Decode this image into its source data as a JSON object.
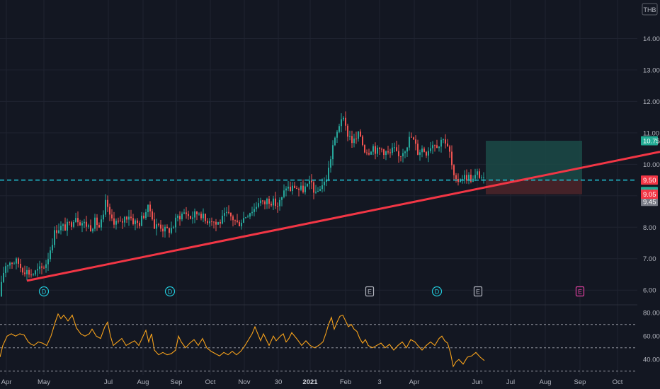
{
  "chart_data": [
    {
      "type": "candlestick",
      "currency": "THB",
      "ylim": [
        5.6,
        15.0
      ],
      "y_ticks": [
        "14.00",
        "13.00",
        "12.00",
        "11.00",
        "10.00",
        "9.00",
        "8.00",
        "7.00",
        "6.00"
      ],
      "x_tick_labels": [
        "Apr",
        "May",
        "Jul",
        "Aug",
        "Sep",
        "Oct",
        "Nov",
        "30",
        "2021",
        "Feb",
        "3",
        "Apr",
        "Jun",
        "Jul",
        "Aug",
        "Sep",
        "Oct"
      ],
      "price_path": [
        [
          0,
          5.8
        ],
        [
          4,
          6.5
        ],
        [
          8,
          6.8
        ],
        [
          13,
          6.9
        ],
        [
          18,
          6.9
        ],
        [
          25,
          6.9
        ],
        [
          30,
          6.7
        ],
        [
          38,
          6.6
        ],
        [
          45,
          6.5
        ],
        [
          52,
          6.6
        ],
        [
          60,
          6.7
        ],
        [
          66,
          6.9
        ],
        [
          72,
          7.4
        ],
        [
          78,
          7.9
        ],
        [
          84,
          8.0
        ],
        [
          92,
          8.0
        ],
        [
          100,
          8.1
        ],
        [
          106,
          8.4
        ],
        [
          112,
          8.2
        ],
        [
          120,
          8.1
        ],
        [
          128,
          8.0
        ],
        [
          135,
          8.2
        ],
        [
          140,
          8.0
        ],
        [
          146,
          8.3
        ],
        [
          150,
          8.9
        ],
        [
          155,
          8.3
        ],
        [
          162,
          8.2
        ],
        [
          170,
          8.1
        ],
        [
          176,
          8.3
        ],
        [
          182,
          8.4
        ],
        [
          188,
          8.2
        ],
        [
          196,
          8.1
        ],
        [
          203,
          8.4
        ],
        [
          208,
          8.6
        ],
        [
          214,
          8.5
        ],
        [
          218,
          8.0
        ],
        [
          225,
          8.1
        ],
        [
          232,
          7.9
        ],
        [
          238,
          7.9
        ],
        [
          244,
          8.0
        ],
        [
          250,
          8.3
        ],
        [
          256,
          8.4
        ],
        [
          262,
          8.5
        ],
        [
          268,
          8.3
        ],
        [
          275,
          8.4
        ],
        [
          282,
          8.5
        ],
        [
          290,
          8.2
        ],
        [
          298,
          8.3
        ],
        [
          305,
          8.1
        ],
        [
          312,
          8.2
        ],
        [
          320,
          8.4
        ],
        [
          328,
          8.3
        ],
        [
          336,
          8.1
        ],
        [
          344,
          8.3
        ],
        [
          352,
          8.5
        ],
        [
          360,
          8.6
        ],
        [
          366,
          8.9
        ],
        [
          372,
          8.7
        ],
        [
          378,
          8.9
        ],
        [
          385,
          8.8
        ],
        [
          392,
          8.7
        ],
        [
          398,
          8.9
        ],
        [
          404,
          9.3
        ],
        [
          410,
          9.2
        ],
        [
          416,
          9.3
        ],
        [
          422,
          9.2
        ],
        [
          428,
          9.2
        ],
        [
          434,
          9.3
        ],
        [
          440,
          9.4
        ],
        [
          446,
          9.0
        ],
        [
          452,
          9.3
        ],
        [
          458,
          9.4
        ],
        [
          462,
          9.6
        ],
        [
          466,
          10.1
        ],
        [
          470,
          10.6
        ],
        [
          474,
          10.8
        ],
        [
          478,
          11.2
        ],
        [
          482,
          11.5
        ],
        [
          486,
          11.3
        ],
        [
          490,
          11.0
        ],
        [
          494,
          10.9
        ],
        [
          498,
          10.7
        ],
        [
          503,
          10.8
        ],
        [
          508,
          11.0
        ],
        [
          514,
          10.5
        ],
        [
          520,
          10.4
        ],
        [
          526,
          10.6
        ],
        [
          532,
          10.4
        ],
        [
          538,
          10.5
        ],
        [
          544,
          10.4
        ],
        [
          550,
          10.3
        ],
        [
          556,
          10.5
        ],
        [
          562,
          10.2
        ],
        [
          568,
          10.4
        ],
        [
          574,
          10.6
        ],
        [
          580,
          10.9
        ],
        [
          585,
          10.7
        ],
        [
          590,
          10.4
        ],
        [
          596,
          10.5
        ],
        [
          602,
          10.4
        ],
        [
          608,
          10.6
        ],
        [
          614,
          10.7
        ],
        [
          620,
          10.6
        ],
        [
          626,
          10.9
        ],
        [
          632,
          10.5
        ],
        [
          636,
          10.3
        ],
        [
          640,
          9.6
        ],
        [
          644,
          9.4
        ],
        [
          650,
          9.6
        ],
        [
          656,
          9.6
        ],
        [
          662,
          9.6
        ],
        [
          668,
          9.5
        ],
        [
          674,
          9.7
        ],
        [
          680,
          9.6
        ],
        [
          684,
          9.45
        ]
      ],
      "horizontal_line": {
        "value": 9.5,
        "label": "9.50"
      },
      "trendline": {
        "points": [
          [
            38,
            6.3
          ],
          [
            932,
            10.4
          ]
        ]
      },
      "long_position": {
        "entry": 9.5,
        "target": 10.75,
        "stop": 9.05,
        "x_range": [
          686,
          822
        ],
        "labels": {
          "target": "10.75",
          "stop": "9.05"
        }
      },
      "price_labels": [
        {
          "text": "10.75",
          "value": 10.75,
          "color": "#22ab94"
        },
        {
          "text": "9.50",
          "value": 9.5,
          "color": "#f23645"
        },
        {
          "text": "9.45",
          "value": 9.45,
          "color": "#22ab94",
          "offset": 1
        },
        {
          "text": "9.45",
          "value": 9.45,
          "color": "#787b86",
          "offset": 2
        },
        {
          "text": "9.05",
          "value": 9.05,
          "color": "#f23645"
        }
      ],
      "event_markers": [
        {
          "type": "dividend",
          "text": "D",
          "x": 62
        },
        {
          "type": "dividend",
          "text": "D",
          "x": 240
        },
        {
          "type": "earnings",
          "text": "E",
          "x": 522
        },
        {
          "type": "dividend",
          "text": "D",
          "x": 617
        },
        {
          "type": "earnings",
          "text": "E",
          "x": 675
        },
        {
          "type": "earnings-future",
          "text": "E",
          "x": 819
        }
      ]
    },
    {
      "type": "line",
      "indicator": "RSI",
      "ylim": [
        28,
        85
      ],
      "y_ticks": [
        "80.00",
        "60.00",
        "40.00"
      ],
      "dashed_levels": [
        70,
        50,
        30
      ],
      "values": [
        [
          0,
          42
        ],
        [
          4,
          52
        ],
        [
          10,
          60
        ],
        [
          16,
          62
        ],
        [
          22,
          60
        ],
        [
          28,
          62
        ],
        [
          34,
          61
        ],
        [
          40,
          55
        ],
        [
          44,
          53
        ],
        [
          48,
          52
        ],
        [
          54,
          55
        ],
        [
          60,
          54
        ],
        [
          66,
          52
        ],
        [
          72,
          60
        ],
        [
          78,
          72
        ],
        [
          82,
          79
        ],
        [
          86,
          75
        ],
        [
          90,
          78
        ],
        [
          96,
          73
        ],
        [
          102,
          78
        ],
        [
          108,
          67
        ],
        [
          114,
          62
        ],
        [
          120,
          60
        ],
        [
          126,
          62
        ],
        [
          130,
          66
        ],
        [
          136,
          60
        ],
        [
          142,
          58
        ],
        [
          148,
          68
        ],
        [
          152,
          72
        ],
        [
          156,
          60
        ],
        [
          160,
          52
        ],
        [
          166,
          55
        ],
        [
          172,
          58
        ],
        [
          178,
          52
        ],
        [
          184,
          54
        ],
        [
          190,
          56
        ],
        [
          196,
          52
        ],
        [
          202,
          60
        ],
        [
          206,
          65
        ],
        [
          210,
          55
        ],
        [
          214,
          62
        ],
        [
          218,
          48
        ],
        [
          224,
          44
        ],
        [
          230,
          46
        ],
        [
          236,
          44
        ],
        [
          242,
          45
        ],
        [
          248,
          48
        ],
        [
          252,
          60
        ],
        [
          256,
          55
        ],
        [
          262,
          50
        ],
        [
          268,
          54
        ],
        [
          274,
          57
        ],
        [
          280,
          52
        ],
        [
          286,
          58
        ],
        [
          292,
          50
        ],
        [
          298,
          47
        ],
        [
          304,
          45
        ],
        [
          310,
          43
        ],
        [
          316,
          46
        ],
        [
          322,
          44
        ],
        [
          328,
          47
        ],
        [
          334,
          44
        ],
        [
          340,
          47
        ],
        [
          346,
          52
        ],
        [
          352,
          58
        ],
        [
          356,
          62
        ],
        [
          360,
          68
        ],
        [
          364,
          62
        ],
        [
          368,
          56
        ],
        [
          372,
          62
        ],
        [
          376,
          57
        ],
        [
          380,
          52
        ],
        [
          386,
          60
        ],
        [
          390,
          56
        ],
        [
          396,
          60
        ],
        [
          400,
          62
        ],
        [
          404,
          55
        ],
        [
          408,
          58
        ],
        [
          412,
          63
        ],
        [
          416,
          60
        ],
        [
          420,
          57
        ],
        [
          426,
          52
        ],
        [
          432,
          56
        ],
        [
          438,
          52
        ],
        [
          444,
          50
        ],
        [
          450,
          52
        ],
        [
          456,
          55
        ],
        [
          460,
          62
        ],
        [
          464,
          70
        ],
        [
          468,
          76
        ],
        [
          472,
          66
        ],
        [
          476,
          72
        ],
        [
          480,
          77
        ],
        [
          484,
          78
        ],
        [
          488,
          73
        ],
        [
          492,
          68
        ],
        [
          496,
          70
        ],
        [
          500,
          66
        ],
        [
          504,
          64
        ],
        [
          508,
          58
        ],
        [
          512,
          54
        ],
        [
          516,
          57
        ],
        [
          520,
          52
        ],
        [
          526,
          50
        ],
        [
          532,
          52
        ],
        [
          538,
          54
        ],
        [
          544,
          50
        ],
        [
          550,
          53
        ],
        [
          556,
          48
        ],
        [
          562,
          52
        ],
        [
          568,
          55
        ],
        [
          574,
          50
        ],
        [
          580,
          57
        ],
        [
          586,
          55
        ],
        [
          590,
          52
        ],
        [
          596,
          48
        ],
        [
          602,
          52
        ],
        [
          608,
          55
        ],
        [
          614,
          52
        ],
        [
          620,
          58
        ],
        [
          624,
          60
        ],
        [
          628,
          56
        ],
        [
          632,
          54
        ],
        [
          636,
          46
        ],
        [
          640,
          34
        ],
        [
          644,
          38
        ],
        [
          648,
          40
        ],
        [
          654,
          36
        ],
        [
          660,
          42
        ],
        [
          666,
          43
        ],
        [
          672,
          46
        ],
        [
          678,
          42
        ],
        [
          684,
          39
        ]
      ]
    }
  ],
  "colors": {
    "background": "#131722",
    "grid": "#1f2330",
    "axis_text": "#b2b5be",
    "up": "#26a69a",
    "down": "#ef5350",
    "trendline": "#f23645",
    "cyan_line": "#22c7d8",
    "rsi_line": "#f7a21b",
    "target_zone": "#1b4a46",
    "stop_zone": "#4a2329"
  }
}
